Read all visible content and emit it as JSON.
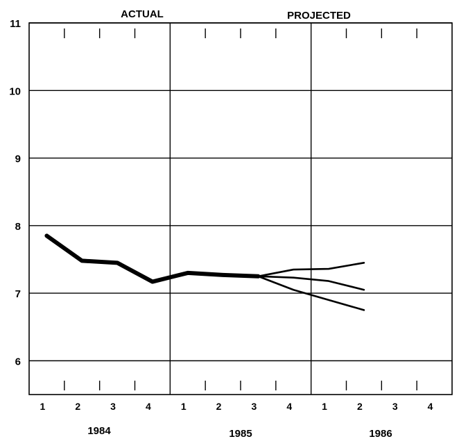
{
  "chart_data": {
    "type": "line",
    "title": "",
    "xlabel": "",
    "ylabel": "",
    "ylim": [
      5.5,
      11
    ],
    "y_ticks": [
      "6",
      "7",
      "8",
      "9",
      "10",
      "11"
    ],
    "quarter_labels": [
      "1",
      "2",
      "3",
      "4",
      "1",
      "2",
      "3",
      "4",
      "1",
      "2",
      "3",
      "4"
    ],
    "year_labels": [
      "1984",
      "1985",
      "1986"
    ],
    "section_labels": {
      "actual": "ACTUAL",
      "projected": "PROJECTED"
    },
    "grid": true,
    "x_unit": "quarter",
    "series": [
      {
        "style": "thick",
        "x": [
          1,
          2,
          3,
          4,
          5,
          6,
          7
        ],
        "values": [
          7.85,
          7.48,
          7.45,
          7.17,
          7.3,
          7.27,
          7.25
        ]
      },
      {
        "style": "thin",
        "x": [
          7,
          8,
          9,
          10
        ],
        "values": [
          7.25,
          7.35,
          7.36,
          7.45
        ]
      },
      {
        "style": "thin",
        "x": [
          7,
          8,
          9,
          10
        ],
        "values": [
          7.25,
          7.23,
          7.18,
          7.05
        ]
      },
      {
        "style": "thin",
        "x": [
          7,
          8,
          9,
          10
        ],
        "values": [
          7.25,
          7.05,
          6.9,
          6.75
        ]
      }
    ],
    "colors": {
      "line": "#000000",
      "grid": "#000000"
    }
  }
}
